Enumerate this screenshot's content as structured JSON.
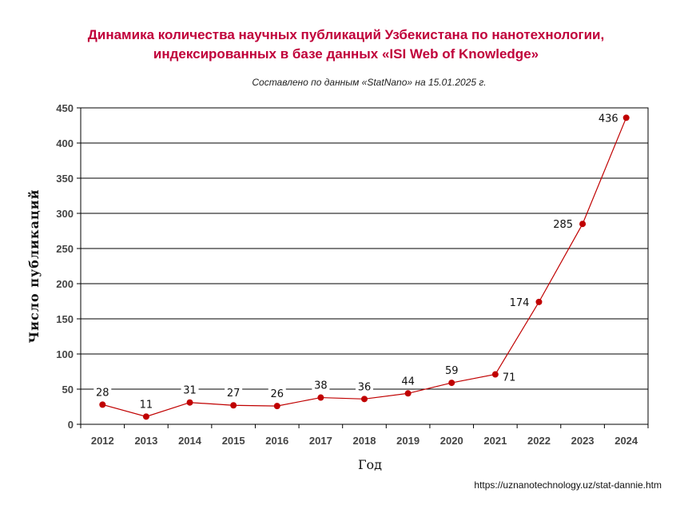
{
  "header": {
    "title_line1": "Динамика количества научных публикаций Узбекистана по нанотехнологии,",
    "title_line2": "индексированных в базе данных «ISI Web of Knowledge»",
    "subtitle": "Составлено  по  данным   «StatNano»  на 15.01.2025  г."
  },
  "footer": {
    "source_url": "https://uznanotechnology.uz/stat-dannie.htm"
  },
  "chart_data": {
    "type": "line",
    "title": "Динамика количества научных публикаций Узбекистана по нанотехнологии, индексированных в базе данных «ISI Web of Knowledge»",
    "subtitle": "Составлено  по  данным   «StatNano»  на 15.01.2025  г.",
    "xlabel": "Год",
    "ylabel": "Число публикаций",
    "categories": [
      "2012",
      "2013",
      "2014",
      "2015",
      "2016",
      "2017",
      "2018",
      "2019",
      "2020",
      "2021",
      "2022",
      "2023",
      "2024"
    ],
    "series": [
      {
        "values": [
          28,
          11,
          31,
          27,
          26,
          38,
          36,
          44,
          59,
          71,
          174,
          285,
          436
        ]
      }
    ],
    "ylim": [
      0,
      450
    ],
    "yticks": [
      0,
      50,
      100,
      150,
      200,
      250,
      300,
      350,
      400,
      450
    ],
    "grid": "horizontal",
    "legend": "none",
    "colors": {
      "line": "#c00000",
      "marker": "#c00000",
      "title": "#c0003a"
    }
  }
}
